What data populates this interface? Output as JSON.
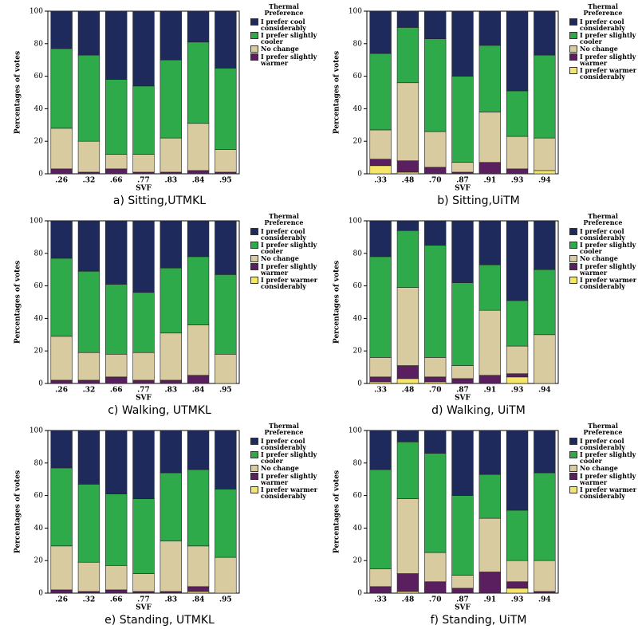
{
  "chart_data": [
    {
      "type": "bar",
      "stacked": true,
      "caption": "a) Sitting,UTMKL",
      "legend_title": "Thermal Preference",
      "x_label": "SVF",
      "y_label": "Percentages of votes",
      "categories": [
        ".26",
        ".32",
        ".66",
        ".77",
        ".83",
        ".84",
        ".95"
      ],
      "ylim": [
        0,
        100
      ],
      "yticks": [
        0,
        20,
        40,
        60,
        80,
        100
      ],
      "series": [
        {
          "name": "I prefer slightly warmer",
          "color": "#5a1f5e",
          "values": [
            3,
            1,
            3,
            1,
            1,
            2,
            1
          ]
        },
        {
          "name": "No change",
          "color": "#d9cba0",
          "values": [
            25,
            19,
            9,
            11,
            21,
            29,
            14
          ]
        },
        {
          "name": "I prefer slightly cooler",
          "color": "#2eaa4a",
          "values": [
            49,
            53,
            46,
            42,
            48,
            50,
            50
          ]
        },
        {
          "name": "I prefer cool considerably",
          "color": "#1f2a5c",
          "values": [
            23,
            27,
            42,
            46,
            30,
            19,
            35
          ]
        }
      ]
    },
    {
      "type": "bar",
      "stacked": true,
      "caption": "b) Sitting,UiTM",
      "legend_title": "Thermal Preference",
      "x_label": "SVF",
      "y_label": "Percentages of votes",
      "categories": [
        ".33",
        ".48",
        ".70",
        ".87",
        ".91",
        ".93",
        ".94"
      ],
      "ylim": [
        0,
        100
      ],
      "yticks": [
        0,
        20,
        40,
        60,
        80,
        100
      ],
      "series": [
        {
          "name": "I prefer warmer considerably",
          "color": "#f5e66a",
          "values": [
            5,
            1,
            0,
            0,
            0,
            0,
            2
          ]
        },
        {
          "name": "I prefer slightly warmer",
          "color": "#5a1f5e",
          "values": [
            4,
            7,
            4,
            1,
            7,
            3,
            0
          ]
        },
        {
          "name": "No change",
          "color": "#d9cba0",
          "values": [
            18,
            48,
            22,
            6,
            31,
            20,
            20
          ]
        },
        {
          "name": "I prefer slightly cooler",
          "color": "#2eaa4a",
          "values": [
            47,
            34,
            57,
            53,
            41,
            28,
            51
          ]
        },
        {
          "name": "I prefer cool considerably",
          "color": "#1f2a5c",
          "values": [
            26,
            10,
            17,
            40,
            21,
            49,
            27
          ]
        }
      ]
    },
    {
      "type": "bar",
      "stacked": true,
      "caption": "c) Walking, UTMKL",
      "legend_title": "Thermal Preference",
      "x_label": "SVF",
      "y_label": "Percentages of votes",
      "categories": [
        ".26",
        ".32",
        ".66",
        ".77",
        ".83",
        ".84",
        ".95"
      ],
      "ylim": [
        0,
        100
      ],
      "yticks": [
        0,
        20,
        40,
        60,
        80,
        100
      ],
      "series": [
        {
          "name": "I prefer warmer considerably",
          "color": "#f5e66a",
          "values": [
            0,
            0,
            0,
            0,
            0,
            0,
            0
          ]
        },
        {
          "name": "I prefer slightly warmer",
          "color": "#5a1f5e",
          "values": [
            2,
            2,
            4,
            2,
            2,
            5,
            0
          ]
        },
        {
          "name": "No change",
          "color": "#d9cba0",
          "values": [
            27,
            17,
            14,
            17,
            29,
            31,
            18
          ]
        },
        {
          "name": "I prefer slightly cooler",
          "color": "#2eaa4a",
          "values": [
            48,
            50,
            43,
            37,
            40,
            42,
            49
          ]
        },
        {
          "name": "I prefer cool considerably",
          "color": "#1f2a5c",
          "values": [
            23,
            31,
            39,
            44,
            29,
            22,
            33
          ]
        }
      ]
    },
    {
      "type": "bar",
      "stacked": true,
      "caption": "d) Walking, UiTM",
      "legend_title": "Thermal Preference",
      "x_label": "SVF",
      "y_label": "Percentages of votes",
      "categories": [
        ".33",
        ".48",
        ".70",
        ".87",
        ".91",
        ".93",
        ".94"
      ],
      "ylim": [
        0,
        100
      ],
      "yticks": [
        0,
        20,
        40,
        60,
        80,
        100
      ],
      "series": [
        {
          "name": "I prefer warmer considerably",
          "color": "#f5e66a",
          "values": [
            1,
            3,
            1,
            0,
            0,
            4,
            0
          ]
        },
        {
          "name": "I prefer slightly warmer",
          "color": "#5a1f5e",
          "values": [
            3,
            8,
            3,
            3,
            5,
            2,
            0
          ]
        },
        {
          "name": "No change",
          "color": "#d9cba0",
          "values": [
            12,
            48,
            12,
            8,
            40,
            17,
            30
          ]
        },
        {
          "name": "I prefer slightly cooler",
          "color": "#2eaa4a",
          "values": [
            62,
            35,
            69,
            51,
            28,
            28,
            40
          ]
        },
        {
          "name": "I prefer cool considerably",
          "color": "#1f2a5c",
          "values": [
            22,
            6,
            15,
            38,
            27,
            49,
            30
          ]
        }
      ]
    },
    {
      "type": "bar",
      "stacked": true,
      "caption": "e) Standing, UTMKL",
      "legend_title": "Thermal Preference",
      "x_label": "SVF",
      "y_label": "Percentages of votes",
      "categories": [
        ".26",
        ".32",
        ".66",
        ".77",
        ".83",
        ".84",
        ".95"
      ],
      "ylim": [
        0,
        100
      ],
      "yticks": [
        0,
        20,
        40,
        60,
        80,
        100
      ],
      "series": [
        {
          "name": "I prefer warmer considerably",
          "color": "#f5e66a",
          "values": [
            0,
            0,
            0,
            0,
            0,
            1,
            0
          ]
        },
        {
          "name": "I prefer slightly warmer",
          "color": "#5a1f5e",
          "values": [
            2,
            1,
            2,
            1,
            1,
            3,
            0
          ]
        },
        {
          "name": "No change",
          "color": "#d9cba0",
          "values": [
            27,
            18,
            15,
            11,
            31,
            25,
            22
          ]
        },
        {
          "name": "I prefer slightly cooler",
          "color": "#2eaa4a",
          "values": [
            48,
            48,
            44,
            46,
            42,
            47,
            42
          ]
        },
        {
          "name": "I prefer cool considerably",
          "color": "#1f2a5c",
          "values": [
            23,
            33,
            39,
            42,
            26,
            24,
            36
          ]
        }
      ]
    },
    {
      "type": "bar",
      "stacked": true,
      "caption": "f) Standing, UiTM",
      "legend_title": "Thermal Preference",
      "x_label": "SVF",
      "y_label": "Percentages of votes",
      "categories": [
        ".33",
        ".48",
        ".70",
        ".87",
        ".91",
        ".93",
        ".94"
      ],
      "ylim": [
        0,
        100
      ],
      "yticks": [
        0,
        20,
        40,
        60,
        80,
        100
      ],
      "series": [
        {
          "name": "I prefer warmer considerably",
          "color": "#f5e66a",
          "values": [
            0,
            1,
            0,
            0,
            0,
            3,
            0
          ]
        },
        {
          "name": "I prefer slightly warmer",
          "color": "#5a1f5e",
          "values": [
            4,
            11,
            7,
            3,
            13,
            4,
            1
          ]
        },
        {
          "name": "No change",
          "color": "#d9cba0",
          "values": [
            11,
            46,
            18,
            8,
            33,
            13,
            19
          ]
        },
        {
          "name": "I prefer slightly cooler",
          "color": "#2eaa4a",
          "values": [
            61,
            35,
            61,
            49,
            27,
            31,
            54
          ]
        },
        {
          "name": "I prefer cool considerably",
          "color": "#1f2a5c",
          "values": [
            24,
            7,
            14,
            40,
            27,
            49,
            26
          ]
        }
      ]
    }
  ]
}
